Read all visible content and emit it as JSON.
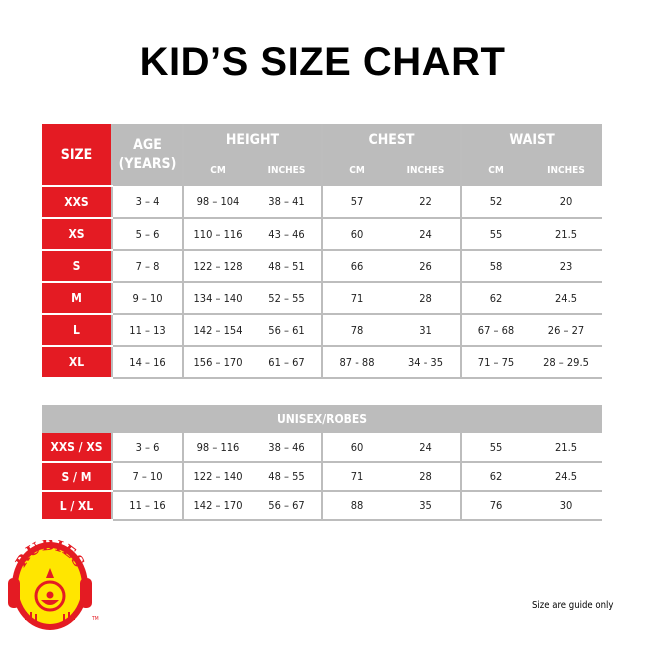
{
  "title": "KID’S SIZE CHART",
  "colors": {
    "accent_red": "#e41b23",
    "header_gray": "#bcbcbc",
    "logo_yellow": "#ffe600"
  },
  "main_table": {
    "size_header": "SIZE",
    "age_header": "AGE (YEARS)",
    "groups": [
      "HEIGHT",
      "CHEST",
      "WAIST"
    ],
    "sub_headers": [
      "CM",
      "INCHES",
      "CM",
      "INCHES",
      "CM",
      "INCHES"
    ],
    "rows": [
      [
        "XXS",
        "3 – 4",
        "98 – 104",
        "38 – 41",
        "57",
        "22",
        "52",
        "20"
      ],
      [
        "XS",
        "5 – 6",
        "110 – 116",
        "43 – 46",
        "60",
        "24",
        "55",
        "21.5"
      ],
      [
        "S",
        "7 – 8",
        "122 – 128",
        "48 – 51",
        "66",
        "26",
        "58",
        "23"
      ],
      [
        "M",
        "9 – 10",
        "134 – 140",
        "52 – 55",
        "71",
        "28",
        "62",
        "24.5"
      ],
      [
        "L",
        "11 – 13",
        "142 – 154",
        "56 – 61",
        "78",
        "31",
        "67 – 68",
        "26 – 27"
      ],
      [
        "XL",
        "14 – 16",
        "156 – 170",
        "61 – 67",
        "87 - 88",
        "34 - 35",
        "71 – 75",
        "28 – 29.5"
      ]
    ]
  },
  "unisex_table": {
    "header": "UNISEX/ROBES",
    "rows": [
      [
        "XXS / XS",
        "3 – 6",
        "98 – 116",
        "38 – 46",
        "60",
        "24",
        "55",
        "21.5"
      ],
      [
        "S / M",
        "7 – 10",
        "122 – 140",
        "48 – 55",
        "71",
        "28",
        "62",
        "24.5"
      ],
      [
        "L / XL",
        "11 – 16",
        "142 – 170",
        "56 – 67",
        "88",
        "35",
        "76",
        "30"
      ]
    ]
  },
  "logo": {
    "text": "RUBIES",
    "trademark": "TM"
  },
  "note": "Size are guide only"
}
